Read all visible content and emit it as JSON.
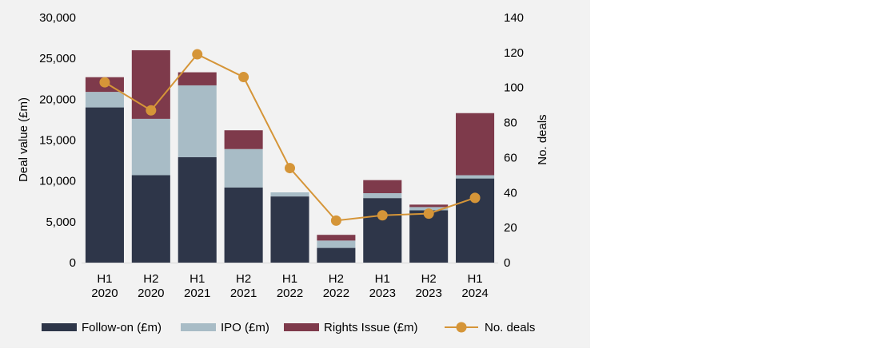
{
  "chart_data": {
    "type": "bar",
    "stacked": true,
    "categories": [
      [
        "H1",
        "2020"
      ],
      [
        "H2",
        "2020"
      ],
      [
        "H1",
        "2021"
      ],
      [
        "H2",
        "2021"
      ],
      [
        "H1",
        "2022"
      ],
      [
        "H2",
        "2022"
      ],
      [
        "H1",
        "2023"
      ],
      [
        "H2",
        "2023"
      ],
      [
        "H1",
        "2024"
      ]
    ],
    "series": [
      {
        "name": "Follow-on (£m)",
        "color": "#2e3649",
        "values": [
          19000,
          10700,
          12900,
          9200,
          8100,
          1800,
          7900,
          6400,
          10300
        ]
      },
      {
        "name": "IPO (£m)",
        "color": "#a8bcc6",
        "values": [
          1900,
          6900,
          8800,
          4700,
          500,
          900,
          600,
          400,
          400
        ]
      },
      {
        "name": "Rights Issue (£m)",
        "color": "#7e3a4b",
        "values": [
          1800,
          8400,
          1600,
          2300,
          0,
          700,
          1600,
          300,
          7600
        ]
      }
    ],
    "line_series": {
      "name": "No. deals",
      "color": "#d59538",
      "values": [
        103,
        87,
        119,
        106,
        54,
        24,
        27,
        28,
        37
      ]
    },
    "ylabel": "Deal value (£m)",
    "y2label": "No. deals",
    "ylim": [
      0,
      30000
    ],
    "yticks": [
      "0",
      "5,000",
      "10,000",
      "15,000",
      "20,000",
      "25,000",
      "30,000"
    ],
    "y2lim": [
      0,
      140
    ],
    "y2ticks": [
      "0",
      "20",
      "40",
      "60",
      "80",
      "100",
      "120",
      "140"
    ],
    "legend_position": "bottom",
    "grid": false
  }
}
